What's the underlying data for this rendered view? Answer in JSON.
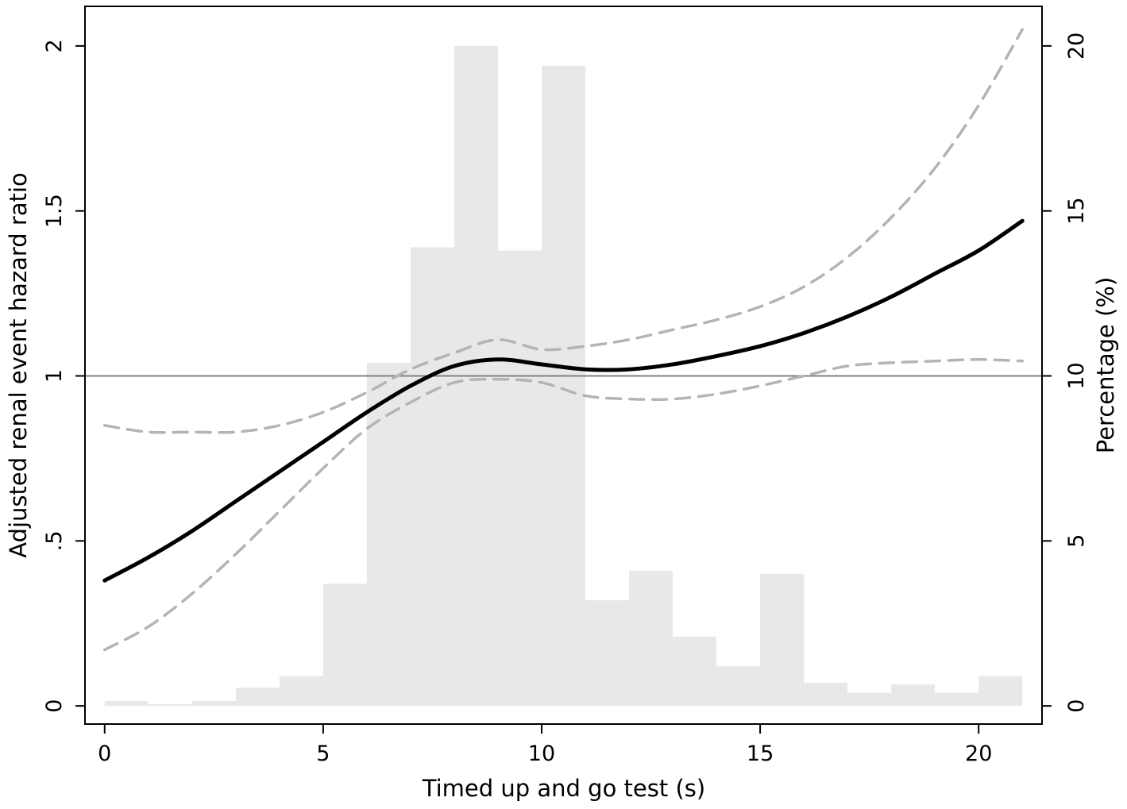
{
  "chart_data": {
    "type": "line",
    "xlabel": "Timed up and go test (s)",
    "ylabel": "Adjusted renal event hazard ratio",
    "y2label": "Percentage (%)",
    "xlim": [
      -0.45,
      21.45
    ],
    "ylim": [
      -0.055,
      2.12
    ],
    "y2lim": [
      -0.55,
      21.2
    ],
    "x_ticks": [
      0,
      5,
      10,
      15,
      20
    ],
    "x_tick_labels": [
      "0",
      "5",
      "10",
      "15",
      "20"
    ],
    "y_ticks": [
      0,
      0.5,
      1,
      1.5,
      2
    ],
    "y_tick_labels": [
      "0",
      ".5",
      "1",
      "1.5",
      "2"
    ],
    "y2_ticks": [
      0,
      5,
      10,
      15,
      20
    ],
    "y2_tick_labels": [
      "0",
      "5",
      "10",
      "15",
      "20"
    ],
    "reference_line": 1,
    "histogram": {
      "axis": "right",
      "bin_edges": [
        0,
        1,
        2,
        3,
        4,
        5,
        6,
        7,
        8,
        9,
        10,
        11,
        12,
        13,
        14,
        15,
        16,
        17,
        18,
        19,
        20,
        21
      ],
      "values": [
        0.15,
        0.05,
        0.15,
        0.55,
        0.9,
        3.7,
        10.4,
        13.9,
        20.0,
        13.8,
        19.4,
        3.2,
        4.1,
        2.1,
        1.2,
        4.0,
        0.7,
        0.4,
        0.65,
        0.4,
        0.9
      ],
      "color": "#e8e8e8"
    },
    "series": [
      {
        "role": "estimate",
        "style": "solid",
        "color": "#000000",
        "x": [
          0,
          1,
          2,
          3,
          4,
          5,
          6,
          7,
          8,
          9,
          10,
          11,
          12,
          13,
          14,
          15,
          16,
          17,
          18,
          19,
          20,
          21
        ],
        "y": [
          0.38,
          0.45,
          0.53,
          0.62,
          0.71,
          0.8,
          0.89,
          0.97,
          1.03,
          1.05,
          1.035,
          1.02,
          1.02,
          1.035,
          1.06,
          1.09,
          1.13,
          1.18,
          1.24,
          1.31,
          1.38,
          1.47
        ]
      },
      {
        "role": "upper 95% CI",
        "style": "dashed",
        "color": "#b4b4b4",
        "x": [
          0,
          1,
          2,
          3,
          4,
          5,
          6,
          7,
          8,
          9,
          10,
          11,
          12,
          13,
          14,
          15,
          16,
          17,
          18,
          19,
          20,
          21
        ],
        "y": [
          0.85,
          0.83,
          0.83,
          0.83,
          0.85,
          0.89,
          0.95,
          1.02,
          1.07,
          1.11,
          1.08,
          1.09,
          1.11,
          1.14,
          1.17,
          1.21,
          1.27,
          1.36,
          1.48,
          1.63,
          1.82,
          2.05
        ]
      },
      {
        "role": "lower 95% CI",
        "style": "dashed",
        "color": "#b4b4b4",
        "x": [
          0,
          1,
          2,
          3,
          4,
          5,
          6,
          7,
          8,
          9,
          10,
          11,
          12,
          13,
          14,
          15,
          16,
          17,
          18,
          19,
          20,
          21
        ],
        "y": [
          0.17,
          0.24,
          0.34,
          0.46,
          0.59,
          0.72,
          0.84,
          0.92,
          0.98,
          0.99,
          0.98,
          0.94,
          0.93,
          0.93,
          0.945,
          0.97,
          1.0,
          1.03,
          1.04,
          1.045,
          1.05,
          1.045
        ]
      }
    ],
    "reference_line_color": "#808080",
    "grid": false,
    "legend": "none"
  }
}
